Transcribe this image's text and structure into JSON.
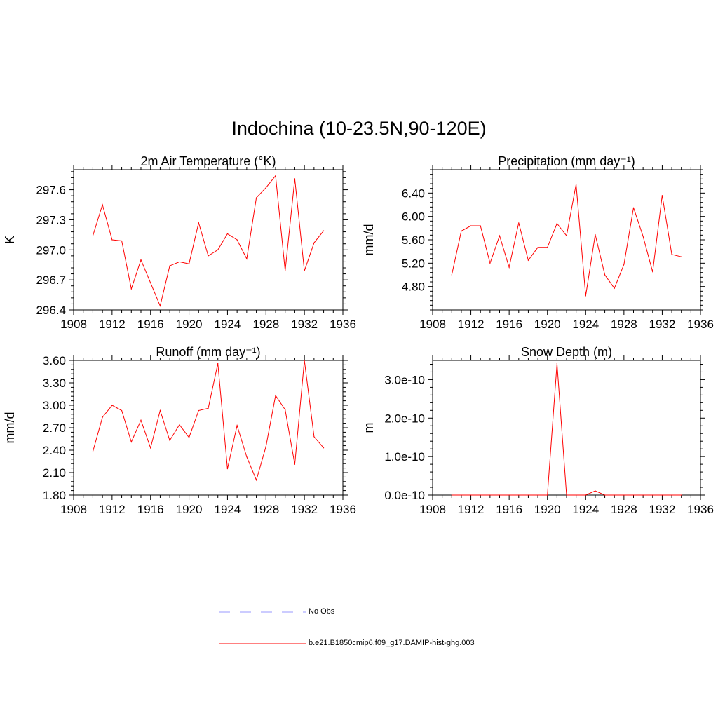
{
  "title": "Indochina (10-23.5N,90-120E)",
  "legend": {
    "items": [
      {
        "label": "No Obs",
        "color": "#9999ff",
        "style": "dashed"
      },
      {
        "label": "b.e21.B1850cmip6.f09_g17.DAMIP-hist-ghg.003",
        "color": "#ff0000",
        "style": "solid"
      }
    ]
  },
  "chart_data": [
    {
      "type": "line",
      "title": "2m Air Temperature (°K)",
      "ylabel": "K",
      "xlim": [
        1908,
        1936
      ],
      "ylim": [
        296.4,
        297.8
      ],
      "xticks": [
        1908,
        1912,
        1916,
        1920,
        1924,
        1928,
        1932,
        1936
      ],
      "yticks": [
        296.4,
        296.7,
        297.0,
        297.3,
        297.6
      ],
      "ytick_labels": [
        "296.4",
        "296.7",
        "297.0",
        "297.3",
        "297.6"
      ],
      "x": [
        1910,
        1911,
        1912,
        1913,
        1914,
        1915,
        1916,
        1917,
        1918,
        1919,
        1920,
        1921,
        1922,
        1923,
        1924,
        1925,
        1926,
        1927,
        1928,
        1929,
        1930,
        1931,
        1932,
        1933,
        1934
      ],
      "series": [
        {
          "color": "#ff0000",
          "values": [
            297.14,
            297.45,
            297.1,
            297.09,
            296.61,
            296.9,
            296.67,
            296.44,
            296.84,
            296.88,
            296.86,
            297.27,
            296.94,
            297.0,
            297.16,
            297.1,
            296.91,
            297.52,
            297.62,
            297.74,
            296.79,
            297.71,
            296.79,
            297.07,
            297.19
          ]
        }
      ]
    },
    {
      "type": "line",
      "title": "Precipitation (mm day⁻¹)",
      "ylabel": "mm/d",
      "xlim": [
        1908,
        1936
      ],
      "ylim": [
        4.4,
        6.8
      ],
      "xticks": [
        1908,
        1912,
        1916,
        1920,
        1924,
        1928,
        1932,
        1936
      ],
      "yticks": [
        4.8,
        5.2,
        5.6,
        6.0,
        6.4
      ],
      "ytick_labels": [
        "4.80",
        "5.20",
        "5.60",
        "6.00",
        "6.40"
      ],
      "x": [
        1910,
        1911,
        1912,
        1913,
        1914,
        1915,
        1916,
        1917,
        1918,
        1919,
        1920,
        1921,
        1922,
        1923,
        1924,
        1925,
        1926,
        1927,
        1928,
        1929,
        1930,
        1931,
        1932,
        1933,
        1934
      ],
      "series": [
        {
          "color": "#ff0000",
          "values": [
            5.0,
            5.75,
            5.84,
            5.84,
            5.2,
            5.67,
            5.13,
            5.89,
            5.25,
            5.47,
            5.47,
            5.88,
            5.67,
            6.55,
            4.64,
            5.69,
            5.0,
            4.77,
            5.18,
            6.15,
            5.66,
            5.05,
            6.36,
            5.35,
            5.31
          ]
        }
      ]
    },
    {
      "type": "line",
      "title": "Runoff (mm day⁻¹)",
      "ylabel": "mm/d",
      "xlim": [
        1908,
        1936
      ],
      "ylim": [
        1.8,
        3.6
      ],
      "xticks": [
        1908,
        1912,
        1916,
        1920,
        1924,
        1928,
        1932,
        1936
      ],
      "yticks": [
        1.8,
        2.1,
        2.4,
        2.7,
        3.0,
        3.3,
        3.6
      ],
      "ytick_labels": [
        "1.80",
        "2.10",
        "2.40",
        "2.70",
        "3.00",
        "3.30",
        "3.60"
      ],
      "x": [
        1910,
        1911,
        1912,
        1913,
        1914,
        1915,
        1916,
        1917,
        1918,
        1919,
        1920,
        1921,
        1922,
        1923,
        1924,
        1925,
        1926,
        1927,
        1928,
        1929,
        1930,
        1931,
        1932,
        1933,
        1934
      ],
      "series": [
        {
          "color": "#ff0000",
          "values": [
            2.38,
            2.84,
            3.0,
            2.93,
            2.51,
            2.8,
            2.43,
            2.93,
            2.53,
            2.74,
            2.57,
            2.93,
            2.96,
            3.56,
            2.15,
            2.73,
            2.31,
            2.0,
            2.45,
            3.13,
            2.94,
            2.21,
            3.6,
            2.58,
            2.43
          ]
        }
      ]
    },
    {
      "type": "line",
      "title": "Snow Depth (m)",
      "ylabel": "m",
      "xlim": [
        1908,
        1936
      ],
      "ylim": [
        0,
        3.5e-10
      ],
      "xticks": [
        1908,
        1912,
        1916,
        1920,
        1924,
        1928,
        1932,
        1936
      ],
      "yticks": [
        0,
        1e-10,
        2e-10,
        3e-10
      ],
      "ytick_labels": [
        "0.0e-10",
        "1.0e-10",
        "2.0e-10",
        "3.0e-10"
      ],
      "x": [
        1910,
        1911,
        1912,
        1913,
        1914,
        1915,
        1916,
        1917,
        1918,
        1919,
        1920,
        1921,
        1922,
        1923,
        1924,
        1925,
        1926,
        1927,
        1928,
        1929,
        1930,
        1931,
        1932,
        1933,
        1934
      ],
      "series": [
        {
          "color": "#ff0000",
          "values": [
            0,
            0,
            0,
            0,
            0,
            0,
            0,
            0,
            0,
            0,
            0,
            3.42e-10,
            0,
            0,
            0,
            1.1e-11,
            0,
            0,
            0,
            0,
            0,
            0,
            0,
            0,
            0
          ]
        }
      ]
    }
  ]
}
